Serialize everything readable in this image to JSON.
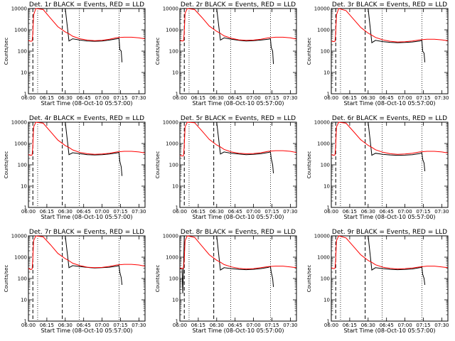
{
  "chart_data": {
    "type": "line",
    "layout": "3x3 grid",
    "xlabel_prefix": "Start Time",
    "start_time_label": "(08-Oct-10 05:57:00)",
    "x_range_min": [
      6.0,
      7.583
    ],
    "x_tick_labels": [
      "06:00",
      "06:15",
      "06:30",
      "06:45",
      "07:00",
      "07:15",
      "07:30"
    ],
    "x_tick_values_min": [
      6.0,
      6.25,
      6.5,
      6.75,
      7.0,
      7.25,
      7.5
    ],
    "ylabel": "Counts/sec",
    "y_scale": "log",
    "ylim": [
      1,
      10000
    ],
    "y_tick_labels": [
      "1",
      "10",
      "100",
      "1000",
      "10000"
    ],
    "y_tick_values": [
      1,
      10,
      100,
      1000,
      10000
    ],
    "legend_text": "BLACK = Events, RED = LLD",
    "series_colors": {
      "events": "#000000",
      "lld": "#ff0000"
    },
    "panels": [
      {
        "title": "Det. 1r BLACK = Events, RED = LLD",
        "events": {
          "x": [
            6.0,
            6.05,
            6.06,
            6.08,
            6.15,
            6.5,
            6.55,
            6.6,
            6.7,
            6.8,
            6.9,
            7.0,
            7.1,
            7.2,
            7.23,
            7.24,
            7.26,
            7.27
          ],
          "y": [
            10000,
            10000,
            10000,
            10000,
            10000,
            10000,
            300,
            380,
            330,
            300,
            290,
            300,
            330,
            380,
            400,
            120,
            100,
            30
          ]
        },
        "lld": {
          "x": [
            6.0,
            6.03,
            6.05,
            6.06,
            6.07,
            6.1,
            6.2,
            6.3,
            6.4,
            6.5,
            6.55,
            6.6,
            6.7,
            6.8,
            6.9,
            7.0,
            7.1,
            7.2,
            7.3,
            7.4,
            7.5,
            7.58
          ],
          "y": [
            320,
            290,
            300,
            700,
            5000,
            10000,
            9000,
            3500,
            1400,
            800,
            650,
            500,
            380,
            330,
            310,
            320,
            360,
            430,
            450,
            450,
            420,
            380
          ]
        }
      },
      {
        "title": "Det. 2r BLACK = Events, RED = LLD",
        "events": {
          "x": [
            6.0,
            6.05,
            6.06,
            6.08,
            6.15,
            6.5,
            6.55,
            6.6,
            6.7,
            6.8,
            6.9,
            7.0,
            7.1,
            7.2,
            7.23,
            7.24,
            7.26,
            7.27
          ],
          "y": [
            10000,
            10000,
            10000,
            10000,
            10000,
            10000,
            330,
            420,
            360,
            320,
            300,
            310,
            330,
            360,
            380,
            150,
            100,
            25
          ]
        },
        "lld": {
          "x": [
            6.0,
            6.03,
            6.05,
            6.06,
            6.07,
            6.1,
            6.2,
            6.3,
            6.4,
            6.5,
            6.55,
            6.6,
            6.7,
            6.8,
            6.9,
            7.0,
            7.1,
            7.2,
            7.3,
            7.4,
            7.5,
            7.58
          ],
          "y": [
            330,
            300,
            310,
            800,
            6000,
            10000,
            9000,
            3800,
            1500,
            850,
            680,
            520,
            400,
            340,
            320,
            330,
            360,
            420,
            450,
            450,
            420,
            370
          ]
        }
      },
      {
        "title": "Det. 3r BLACK = Events, RED = LLD",
        "events": {
          "x": [
            6.0,
            6.05,
            6.06,
            6.08,
            6.15,
            6.5,
            6.55,
            6.6,
            6.7,
            6.8,
            6.9,
            7.0,
            7.1,
            7.2,
            7.23,
            7.24,
            7.26,
            7.27
          ],
          "y": [
            10000,
            10000,
            10000,
            10000,
            10000,
            10000,
            250,
            320,
            280,
            260,
            250,
            255,
            270,
            300,
            320,
            100,
            80,
            30
          ]
        },
        "lld": {
          "x": [
            6.0,
            6.03,
            6.05,
            6.06,
            6.07,
            6.1,
            6.2,
            6.3,
            6.4,
            6.5,
            6.55,
            6.6,
            6.7,
            6.8,
            6.9,
            7.0,
            7.1,
            7.2,
            7.3,
            7.4,
            7.5,
            7.58
          ],
          "y": [
            300,
            280,
            290,
            700,
            5000,
            10000,
            8000,
            3200,
            1300,
            700,
            560,
            440,
            340,
            290,
            270,
            275,
            300,
            340,
            360,
            360,
            340,
            310
          ]
        }
      },
      {
        "title": "Det. 4r BLACK = Events, RED = LLD",
        "events": {
          "x": [
            6.0,
            6.05,
            6.06,
            6.08,
            6.15,
            6.5,
            6.55,
            6.6,
            6.7,
            6.8,
            6.9,
            7.0,
            7.1,
            7.2,
            7.23,
            7.24,
            7.26,
            7.27
          ],
          "y": [
            10000,
            10000,
            10000,
            10000,
            10000,
            10000,
            300,
            370,
            330,
            300,
            290,
            300,
            320,
            360,
            380,
            150,
            80,
            30
          ]
        },
        "lld": {
          "x": [
            6.0,
            6.03,
            6.05,
            6.06,
            6.07,
            6.1,
            6.2,
            6.3,
            6.4,
            6.5,
            6.55,
            6.6,
            6.7,
            6.8,
            6.9,
            7.0,
            7.1,
            7.2,
            7.3,
            7.4,
            7.5,
            7.58
          ],
          "y": [
            300,
            280,
            290,
            800,
            6000,
            10000,
            9000,
            3600,
            1450,
            800,
            650,
            500,
            380,
            330,
            310,
            320,
            350,
            400,
            430,
            430,
            400,
            360
          ]
        }
      },
      {
        "title": "Det. 5r BLACK = Events, RED = LLD",
        "events": {
          "x": [
            6.0,
            6.05,
            6.06,
            6.08,
            6.15,
            6.5,
            6.55,
            6.6,
            6.7,
            6.8,
            6.9,
            7.0,
            7.1,
            7.2,
            7.23,
            7.24,
            7.26,
            7.27
          ],
          "y": [
            10000,
            10000,
            10000,
            10000,
            10000,
            10000,
            320,
            400,
            350,
            320,
            300,
            310,
            330,
            380,
            400,
            200,
            100,
            40
          ]
        },
        "lld": {
          "x": [
            6.0,
            6.03,
            6.05,
            6.06,
            6.07,
            6.1,
            6.2,
            6.3,
            6.4,
            6.5,
            6.55,
            6.6,
            6.7,
            6.8,
            6.9,
            7.0,
            7.1,
            7.2,
            7.3,
            7.4,
            7.5,
            7.58
          ],
          "y": [
            280,
            260,
            270,
            800,
            6000,
            10000,
            9500,
            3900,
            1550,
            850,
            690,
            530,
            400,
            350,
            330,
            340,
            370,
            430,
            460,
            460,
            430,
            380
          ]
        }
      },
      {
        "title": "Det. 6r BLACK = Events, RED = LLD",
        "events": {
          "x": [
            6.0,
            6.05,
            6.06,
            6.08,
            6.15,
            6.5,
            6.55,
            6.6,
            6.7,
            6.8,
            6.9,
            7.0,
            7.1,
            7.2,
            7.23,
            7.24,
            7.26,
            7.27
          ],
          "y": [
            10000,
            10000,
            10000,
            10000,
            10000,
            10000,
            280,
            350,
            310,
            290,
            280,
            285,
            300,
            340,
            360,
            180,
            120,
            50
          ]
        },
        "lld": {
          "x": [
            6.0,
            6.03,
            6.05,
            6.06,
            6.07,
            6.1,
            6.2,
            6.3,
            6.4,
            6.5,
            6.55,
            6.6,
            6.7,
            6.8,
            6.9,
            7.0,
            7.1,
            7.2,
            7.3,
            7.4,
            7.5,
            7.58
          ],
          "y": [
            300,
            280,
            290,
            800,
            6000,
            10000,
            9000,
            3700,
            1500,
            820,
            660,
            510,
            390,
            330,
            310,
            320,
            350,
            400,
            430,
            430,
            400,
            360
          ]
        }
      },
      {
        "title": "Det. 7r BLACK = Events, RED = LLD",
        "events": {
          "x": [
            6.0,
            6.05,
            6.06,
            6.08,
            6.15,
            6.5,
            6.55,
            6.6,
            6.7,
            6.8,
            6.9,
            7.0,
            7.1,
            7.2,
            7.23,
            7.24,
            7.26,
            7.27
          ],
          "y": [
            10000,
            10000,
            10000,
            10000,
            10000,
            10000,
            320,
            400,
            360,
            330,
            310,
            320,
            340,
            380,
            400,
            200,
            110,
            50
          ]
        },
        "lld": {
          "x": [
            6.0,
            6.03,
            6.05,
            6.06,
            6.07,
            6.1,
            6.2,
            6.3,
            6.4,
            6.5,
            6.55,
            6.6,
            6.7,
            6.8,
            6.9,
            7.0,
            7.1,
            7.2,
            7.3,
            7.4,
            7.5,
            7.58
          ],
          "y": [
            300,
            260,
            280,
            900,
            6000,
            10000,
            9000,
            3800,
            1500,
            850,
            680,
            520,
            400,
            340,
            320,
            330,
            370,
            430,
            460,
            460,
            430,
            380
          ]
        }
      },
      {
        "title": "Det. 8r BLACK = Events, RED = LLD",
        "events": {
          "x": [
            6.0,
            6.03,
            6.04,
            6.05,
            6.06,
            6.08,
            6.5,
            6.55,
            6.6,
            6.7,
            6.8,
            6.9,
            7.0,
            7.1,
            7.2,
            7.23,
            7.24,
            7.26,
            7.27
          ],
          "y": [
            280,
            300,
            20,
            300,
            10000,
            10000,
            10000,
            250,
            320,
            290,
            270,
            260,
            270,
            290,
            330,
            360,
            200,
            100,
            40
          ]
        },
        "lld": {
          "x": [
            6.0,
            6.03,
            6.05,
            6.06,
            6.07,
            6.1,
            6.2,
            6.3,
            6.4,
            6.5,
            6.55,
            6.6,
            6.7,
            6.8,
            6.9,
            7.0,
            7.1,
            7.2,
            7.3,
            7.4,
            7.5,
            7.58
          ],
          "y": [
            320,
            290,
            300,
            800,
            6000,
            10000,
            8500,
            3300,
            1300,
            720,
            580,
            450,
            350,
            300,
            280,
            290,
            320,
            360,
            380,
            380,
            350,
            320
          ]
        }
      },
      {
        "title": "Det. 9r BLACK = Events, RED = LLD",
        "events": {
          "x": [
            6.0,
            6.05,
            6.06,
            6.08,
            6.15,
            6.5,
            6.55,
            6.6,
            6.7,
            6.8,
            6.9,
            7.0,
            7.1,
            7.2,
            7.23,
            7.24,
            7.26,
            7.27
          ],
          "y": [
            10000,
            10000,
            10000,
            10000,
            10000,
            10000,
            250,
            320,
            290,
            270,
            260,
            265,
            280,
            320,
            340,
            160,
            100,
            50
          ]
        },
        "lld": {
          "x": [
            6.0,
            6.03,
            6.05,
            6.06,
            6.07,
            6.1,
            6.2,
            6.3,
            6.4,
            6.5,
            6.55,
            6.6,
            6.7,
            6.8,
            6.9,
            7.0,
            7.1,
            7.2,
            7.3,
            7.4,
            7.5,
            7.58
          ],
          "y": [
            320,
            290,
            300,
            800,
            6000,
            10000,
            8000,
            3200,
            1300,
            700,
            570,
            440,
            340,
            300,
            280,
            290,
            310,
            350,
            380,
            380,
            350,
            320
          ]
        }
      }
    ]
  }
}
